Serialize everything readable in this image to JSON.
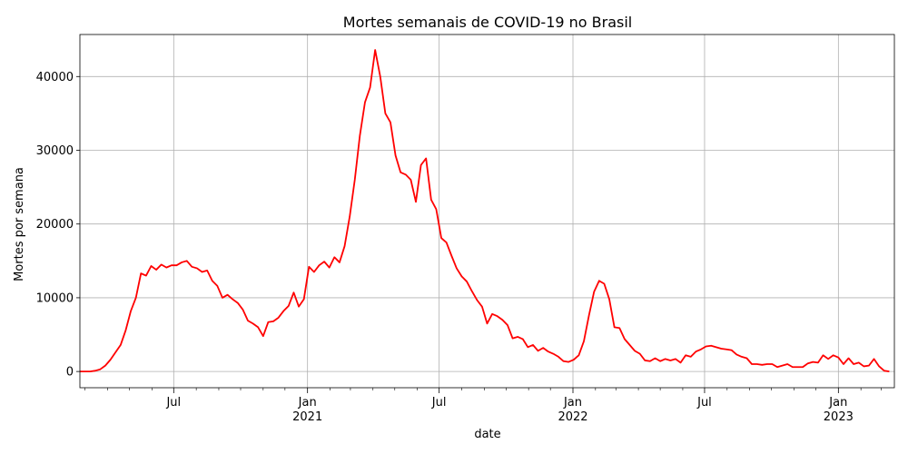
{
  "chart_data": {
    "type": "line",
    "title": "Mortes semanais de COVID-19 no Brasil",
    "xlabel": "date",
    "ylabel": "Mortes por semana",
    "x_range": [
      "2020-02-23",
      "2023-03-19"
    ],
    "ylim": [
      -2200,
      45700
    ],
    "yticks": [
      0,
      10000,
      20000,
      30000,
      40000
    ],
    "xticks_major": [
      {
        "date": "2020-07-01",
        "label": "Jul",
        "sublabel": ""
      },
      {
        "date": "2021-01-01",
        "label": "Jan",
        "sublabel": "2021"
      },
      {
        "date": "2021-07-01",
        "label": "Jul",
        "sublabel": ""
      },
      {
        "date": "2022-01-01",
        "label": "Jan",
        "sublabel": "2022"
      },
      {
        "date": "2022-07-01",
        "label": "Jul",
        "sublabel": ""
      },
      {
        "date": "2023-01-01",
        "label": "Jan",
        "sublabel": "2023"
      }
    ],
    "xticks_minor": [
      "2020-03-01",
      "2020-04-01",
      "2020-05-01",
      "2020-06-01",
      "2020-08-01",
      "2020-09-01",
      "2020-10-01",
      "2020-11-01",
      "2020-12-01",
      "2021-02-01",
      "2021-03-01",
      "2021-04-01",
      "2021-05-01",
      "2021-06-01",
      "2021-08-01",
      "2021-09-01",
      "2021-10-01",
      "2021-11-01",
      "2021-12-01",
      "2022-02-01",
      "2022-03-01",
      "2022-04-01",
      "2022-05-01",
      "2022-06-01",
      "2022-08-01",
      "2022-09-01",
      "2022-10-01",
      "2022-11-01",
      "2022-12-01",
      "2023-02-01",
      "2023-03-01"
    ],
    "grid": true,
    "line_color": "#ff0000",
    "series": [
      {
        "start_date": "2020-02-23",
        "step_days": 7,
        "values": [
          0,
          0,
          0,
          100,
          300,
          800,
          1600,
          2600,
          3600,
          5600,
          8200,
          10000,
          13300,
          13000,
          14300,
          13800,
          14500,
          14100,
          14400,
          14400,
          14800,
          15000,
          14200,
          14000,
          13500,
          13700,
          12300,
          11600,
          10000,
          10400,
          9800,
          9300,
          8400,
          6900,
          6500,
          6000,
          4800,
          6700,
          6800,
          7300,
          8200,
          8900,
          10700,
          8800,
          9800,
          14200,
          13500,
          14400,
          14900,
          14100,
          15500,
          14800,
          17000,
          21000,
          26000,
          32000,
          36500,
          38500,
          43600,
          40000,
          35000,
          33800,
          29300,
          27000,
          26700,
          26000,
          23000,
          28000,
          28900,
          23300,
          22000,
          18100,
          17500,
          15700,
          14000,
          12900,
          12200,
          10900,
          9700,
          8800,
          6500,
          7800,
          7500,
          7000,
          6300,
          4500,
          4700,
          4400,
          3300,
          3600,
          2800,
          3200,
          2700,
          2400,
          2000,
          1400,
          1300,
          1600,
          2200,
          4100,
          7600,
          10800,
          12300,
          11900,
          9800,
          6000,
          5900,
          4400,
          3600,
          2800,
          2400,
          1500,
          1400,
          1800,
          1400,
          1700,
          1500,
          1700,
          1200,
          2200,
          2000,
          2700,
          3000,
          3400,
          3500,
          3300,
          3100,
          3000,
          2900,
          2300,
          2000,
          1800,
          1000,
          1000,
          900,
          1000,
          1000,
          600,
          800,
          1000,
          600,
          600,
          600,
          1100,
          1300,
          1200,
          2200,
          1700,
          2200,
          1900,
          1000,
          1800,
          1000,
          1200,
          700,
          800,
          1700,
          700,
          100,
          0
        ]
      }
    ]
  }
}
